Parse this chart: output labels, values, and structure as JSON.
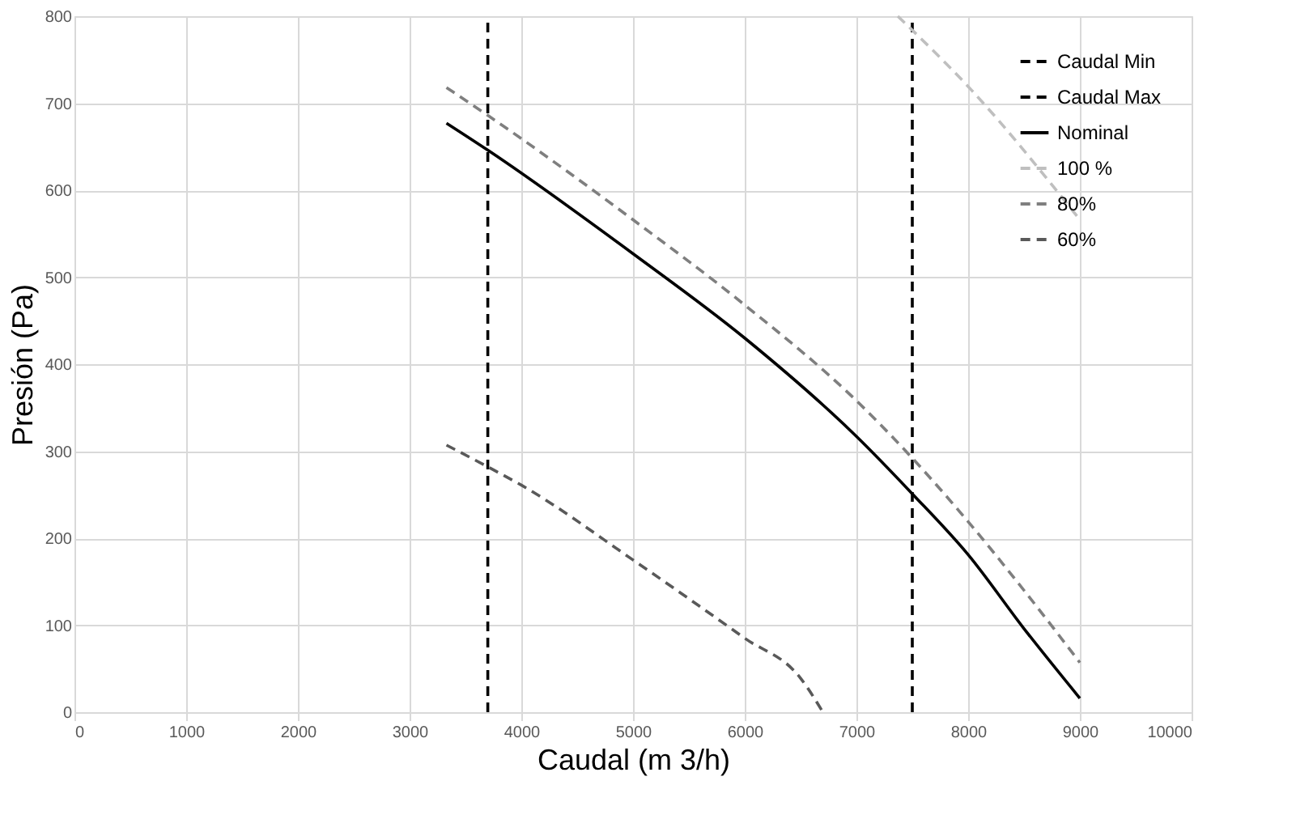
{
  "chart_data": {
    "type": "line",
    "xlabel": "Caudal (m 3/h)",
    "ylabel": "Presión (Pa)",
    "x": [
      3330,
      3700,
      5000,
      6000,
      7000,
      7500,
      8000,
      8500,
      9000
    ],
    "series": [
      {
        "name": "Caudal Min",
        "color": "#000000",
        "line_style": "dashed",
        "x": [
          3700,
          3700
        ],
        "values": [
          0,
          800
        ]
      },
      {
        "name": "Caudal Max",
        "color": "#000000",
        "line_style": "dashed",
        "x": [
          7500,
          7500
        ],
        "values": [
          0,
          800
        ]
      },
      {
        "name": "Nominal",
        "color": "#000000",
        "line_style": "solid",
        "values": [
          677,
          646,
          527,
          430,
          317,
          251,
          181,
          96,
          16
        ]
      },
      {
        "name": "100 %",
        "color": "#bfbfbf",
        "line_style": "dashed",
        "x": [
          7370,
          8030,
          9000
        ],
        "values": [
          800,
          715,
          566
        ]
      },
      {
        "name": "80%",
        "color": "#7f7f7f",
        "line_style": "dashed",
        "values": [
          718,
          686,
          566,
          468,
          358,
          292,
          219,
          140,
          57
        ]
      },
      {
        "name": "60%",
        "color": "#595959",
        "line_style": "dashed",
        "x": [
          3330,
          3700,
          4000,
          5000,
          6000,
          6500,
          6700
        ],
        "values": [
          307,
          282,
          261,
          175,
          85,
          39,
          0
        ]
      }
    ],
    "xlim": [
      0,
      10000
    ],
    "xticks": [
      0,
      1000,
      2000,
      3000,
      4000,
      5000,
      6000,
      7000,
      8000,
      9000,
      10000
    ],
    "ylim": [
      0,
      800
    ],
    "yticks": [
      0,
      100,
      200,
      300,
      400,
      500,
      600,
      700,
      800
    ],
    "grid": true,
    "legend": "top right",
    "marker": "none"
  }
}
